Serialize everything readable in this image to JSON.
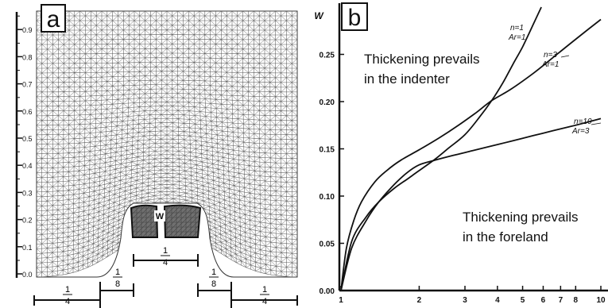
{
  "panel_a": {
    "label": "a",
    "y_ticks": [
      "0.0",
      "0.1",
      "0.2",
      "0.3",
      "0.4",
      "0.5",
      "0.6",
      "0.7",
      "0.8",
      "0.9"
    ],
    "block_label": "W",
    "dims": {
      "left": [
        "1",
        "4"
      ],
      "left_shoulder": [
        "1",
        "8"
      ],
      "center": [
        "1",
        "4"
      ],
      "right_shoulder": [
        "1",
        "8"
      ],
      "right": [
        "1",
        "4"
      ]
    },
    "colors": {
      "mesh": "#5a5a5a",
      "block": "#707070",
      "block_mesh": "#454545"
    }
  },
  "panel_b": {
    "label": "b",
    "ylabel": "W",
    "annotations": {
      "indenter": [
        "Thickening prevails",
        "in the indenter"
      ],
      "foreland": [
        "Thickening prevails",
        "in the foreland"
      ]
    },
    "curve_labels": [
      {
        "series": 0,
        "n": "n=1",
        "ar": "Ar=1"
      },
      {
        "series": 1,
        "n": "n=3",
        "ar": "Ar=1"
      },
      {
        "series": 2,
        "n": "n=10",
        "ar": "Ar=3"
      }
    ]
  },
  "chart_data": {
    "type": "line",
    "xscale": "log",
    "xlim": [
      1,
      10
    ],
    "ylim": [
      0,
      0.3
    ],
    "x_ticks": [
      "1",
      "2",
      "3",
      "4",
      "5",
      "6",
      "7",
      "8",
      "10"
    ],
    "x_tick_values": [
      1,
      2,
      3,
      4,
      5,
      6,
      7,
      8,
      10
    ],
    "y_ticks": [
      "0.00",
      "0.05",
      "0.10",
      "0.15",
      "0.20",
      "0.25"
    ],
    "y_tick_values": [
      0,
      0.05,
      0.1,
      0.15,
      0.2,
      0.25
    ],
    "series": [
      {
        "name": "n=1 Ar=1",
        "x": [
          1,
          1.1,
          1.25,
          1.4,
          1.6,
          1.8,
          2.0,
          2.3,
          2.6,
          3.0,
          3.4,
          3.8,
          4.2,
          4.6,
          5.0,
          5.5,
          5.9
        ],
        "y": [
          0,
          0.052,
          0.078,
          0.094,
          0.108,
          0.118,
          0.127,
          0.139,
          0.151,
          0.165,
          0.183,
          0.201,
          0.22,
          0.24,
          0.258,
          0.282,
          0.3
        ]
      },
      {
        "name": "n=3 Ar=1",
        "x": [
          1,
          1.05,
          1.12,
          1.2,
          1.35,
          1.5,
          1.7,
          2.0,
          2.4,
          2.8,
          3.3,
          3.8,
          4.5,
          5.5,
          6.5,
          8.0,
          10
        ],
        "y": [
          0,
          0.045,
          0.074,
          0.094,
          0.115,
          0.127,
          0.138,
          0.149,
          0.162,
          0.174,
          0.188,
          0.201,
          0.213,
          0.23,
          0.246,
          0.266,
          0.287
        ]
      },
      {
        "name": "n=10 Ar=3",
        "x": [
          1,
          1.1,
          1.25,
          1.4,
          1.6,
          1.8,
          2.0,
          2.3,
          2.7,
          3.2,
          3.8,
          4.5,
          5.5,
          6.5,
          8.0,
          10
        ],
        "y": [
          0,
          0.045,
          0.074,
          0.094,
          0.112,
          0.125,
          0.133,
          0.138,
          0.143,
          0.148,
          0.153,
          0.158,
          0.164,
          0.169,
          0.175,
          0.182
        ]
      }
    ]
  }
}
